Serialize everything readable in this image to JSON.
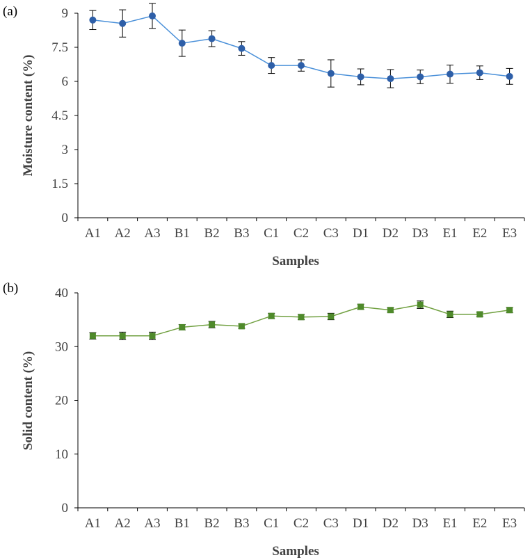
{
  "chart_data": [
    {
      "type": "line",
      "panel_label": "(a)",
      "title": "",
      "xlabel": "Samples",
      "ylabel": "Moisture content (%)",
      "categories": [
        "A1",
        "A2",
        "A3",
        "B1",
        "B2",
        "B3",
        "C1",
        "C2",
        "C3",
        "D1",
        "D2",
        "D3",
        "E1",
        "E2",
        "E3"
      ],
      "ylim": [
        0,
        9
      ],
      "yticks": [
        0,
        1.5,
        3,
        4.5,
        6,
        7.5,
        9
      ],
      "ytick_labels": [
        "0",
        "1.5",
        "3",
        "4.5",
        "6",
        "7.5",
        "9"
      ],
      "grid": false,
      "legend": "none",
      "series": [
        {
          "name": "Moisture content",
          "values": [
            8.7,
            8.55,
            8.88,
            7.68,
            7.88,
            7.45,
            6.7,
            6.7,
            6.35,
            6.2,
            6.12,
            6.2,
            6.32,
            6.38,
            6.22
          ],
          "errors": [
            0.42,
            0.6,
            0.55,
            0.58,
            0.35,
            0.3,
            0.35,
            0.25,
            0.6,
            0.35,
            0.4,
            0.3,
            0.4,
            0.3,
            0.35
          ],
          "color": "#4a90d9",
          "marker_color": "#2e5fa8",
          "marker": "circle"
        }
      ]
    },
    {
      "type": "line",
      "panel_label": "(b)",
      "title": "",
      "xlabel": "Samples",
      "ylabel": "Solid content (%)",
      "categories": [
        "A1",
        "A2",
        "A3",
        "B1",
        "B2",
        "B3",
        "C1",
        "C2",
        "C3",
        "D1",
        "D2",
        "D3",
        "E1",
        "E2",
        "E3"
      ],
      "ylim": [
        0,
        40
      ],
      "yticks": [
        0,
        10,
        20,
        30,
        40
      ],
      "ytick_labels": [
        "0",
        "10",
        "20",
        "30",
        "40"
      ],
      "grid": false,
      "legend": "none",
      "series": [
        {
          "name": "Solid content",
          "values": [
            32.0,
            32.0,
            32.0,
            33.6,
            34.1,
            33.8,
            35.7,
            35.5,
            35.6,
            37.4,
            36.8,
            37.8,
            36.0,
            36.0,
            36.8
          ],
          "errors": [
            0.6,
            0.7,
            0.7,
            0.5,
            0.6,
            0.4,
            0.5,
            0.5,
            0.6,
            0.5,
            0.4,
            0.7,
            0.6,
            0.4,
            0.5
          ],
          "color": "#70a040",
          "marker_color": "#4f8a2b",
          "marker": "square"
        }
      ]
    }
  ]
}
